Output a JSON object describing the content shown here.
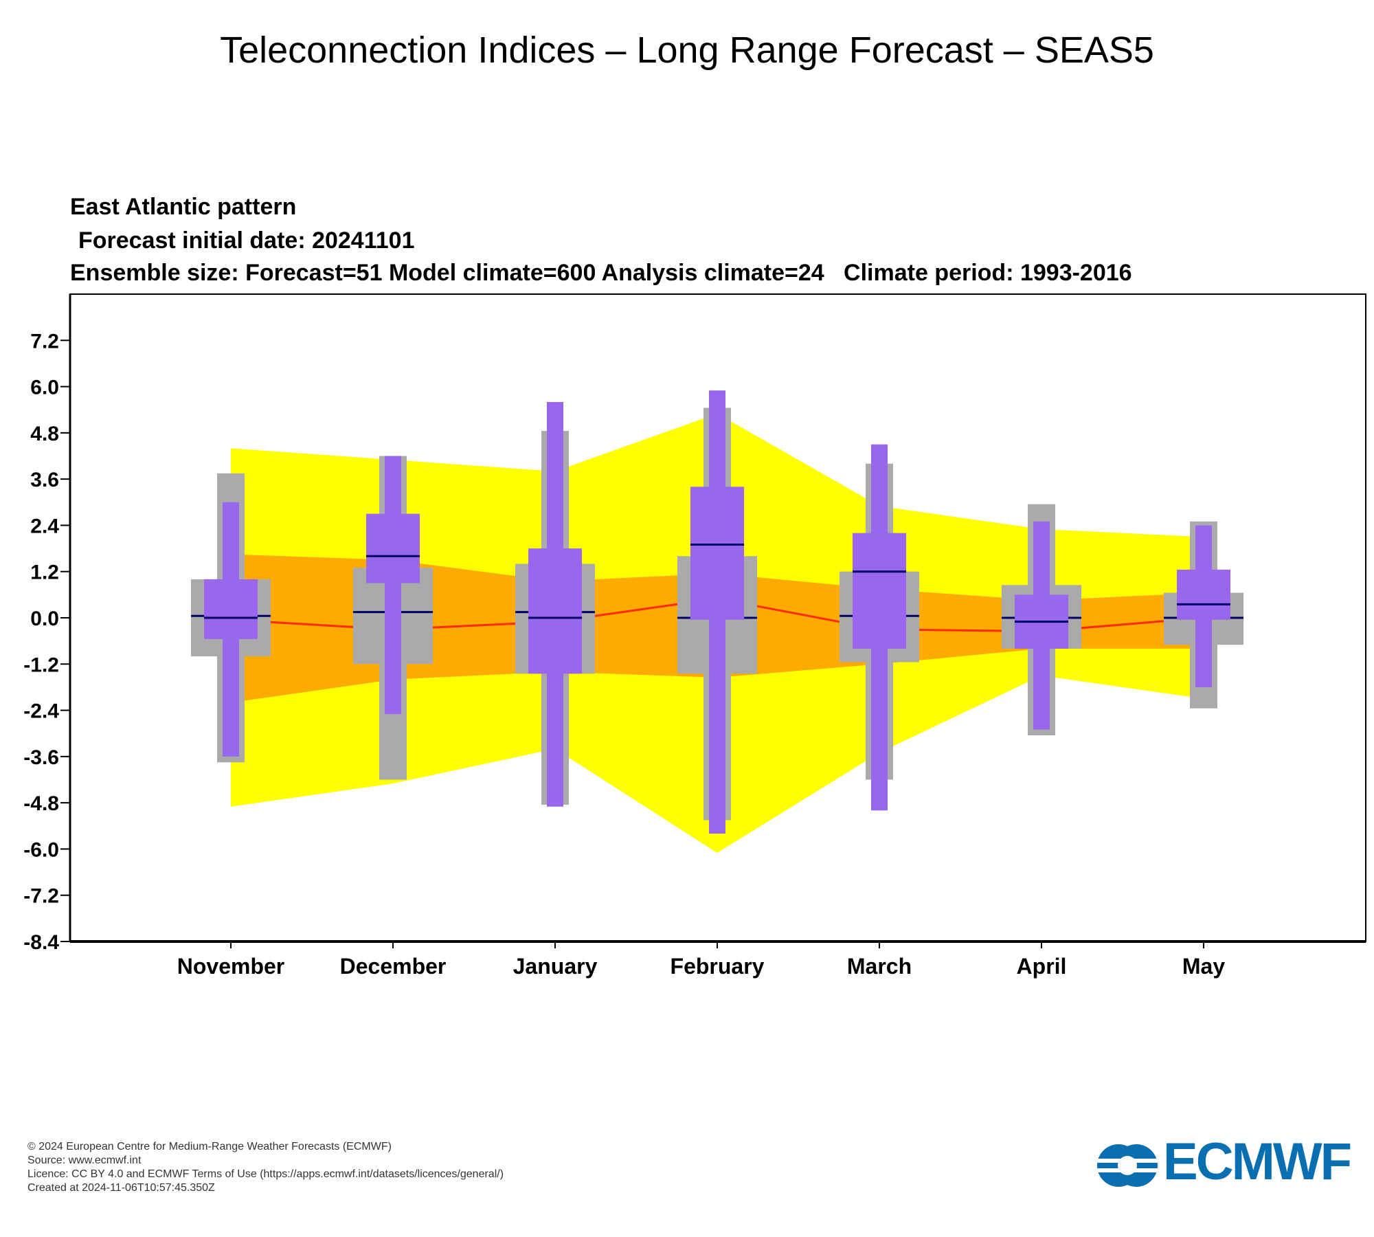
{
  "header": {
    "title": "Teleconnection Indices – Long Range Forecast – SEAS5"
  },
  "chart_data": {
    "type": "box",
    "title": "East Atlantic pattern",
    "subtitle": "Forecast initial date: 20241101",
    "info": "Ensemble size: Forecast=51 Model climate=600 Analysis climate=24   Climate period: 1993-2016",
    "categories": [
      "November",
      "December",
      "January",
      "February",
      "March",
      "April",
      "May"
    ],
    "yticks": [
      "7.2",
      "6.0",
      "4.8",
      "3.6",
      "2.4",
      "1.2",
      "0.0",
      "-1.2",
      "-2.4",
      "-3.6",
      "-4.8",
      "-6.0",
      "-7.2",
      "-8.4"
    ],
    "ylim": [
      -8.4,
      8.4
    ],
    "model_climate": {
      "outer_upper": [
        4.4,
        4.1,
        3.8,
        5.3,
        2.9,
        2.3,
        2.1
      ],
      "outer_lower": [
        -4.9,
        -4.3,
        -3.4,
        -6.1,
        -3.5,
        -1.5,
        -2.1
      ],
      "inner_upper": [
        1.65,
        1.5,
        0.95,
        1.15,
        0.75,
        0.45,
        0.65
      ],
      "inner_lower": [
        -2.2,
        -1.6,
        -1.4,
        -1.55,
        -1.2,
        -0.8,
        -0.8
      ],
      "median": [
        -0.05,
        -0.3,
        -0.1,
        0.5,
        -0.3,
        -0.35,
        0.0
      ]
    },
    "model_climate_colors": {
      "outer": "#ffff00",
      "inner": "#ffaa00",
      "median_line": "#ff2a00"
    },
    "analysis_climate": {
      "max": [
        3.75,
        4.2,
        4.85,
        5.45,
        4.0,
        2.95,
        2.5
      ],
      "upper": [
        1.0,
        1.3,
        1.4,
        1.6,
        1.2,
        0.85,
        0.65
      ],
      "median": [
        0.05,
        0.15,
        0.15,
        0.0,
        0.05,
        0.0,
        0.0
      ],
      "lower": [
        -1.0,
        -1.2,
        -1.45,
        -1.45,
        -1.15,
        -0.8,
        -0.7
      ],
      "min": [
        -3.75,
        -4.2,
        -4.85,
        -5.25,
        -4.2,
        -3.05,
        -2.35
      ]
    },
    "forecast": {
      "max": [
        3.0,
        4.2,
        5.6,
        5.9,
        4.5,
        2.5,
        2.4
      ],
      "upper": [
        1.0,
        2.7,
        1.8,
        3.4,
        2.2,
        0.6,
        1.25
      ],
      "median": [
        0.0,
        1.6,
        0.0,
        1.9,
        1.2,
        -0.1,
        0.35
      ],
      "lower": [
        -0.55,
        0.9,
        -1.45,
        -0.05,
        -0.8,
        -0.8,
        -0.05
      ],
      "min": [
        -3.6,
        -2.5,
        -4.9,
        -5.6,
        -5.0,
        -2.9,
        -1.8
      ]
    },
    "colors": {
      "analysis": "#aaaaaa",
      "forecast": "#9966ee",
      "median": "#000066"
    }
  },
  "footer": {
    "copyright": "© 2024 European Centre for Medium-Range Weather Forecasts (ECMWF)",
    "source": "Source: www.ecmwf.int",
    "licence": "Licence: CC BY 4.0 and ECMWF Terms of Use (https://apps.ecmwf.int/datasets/licences/general/)",
    "created": "Created at 2024-11-06T10:57:45.350Z",
    "logo_text": "ECMWF",
    "logo_color": "#0a6fb0"
  }
}
